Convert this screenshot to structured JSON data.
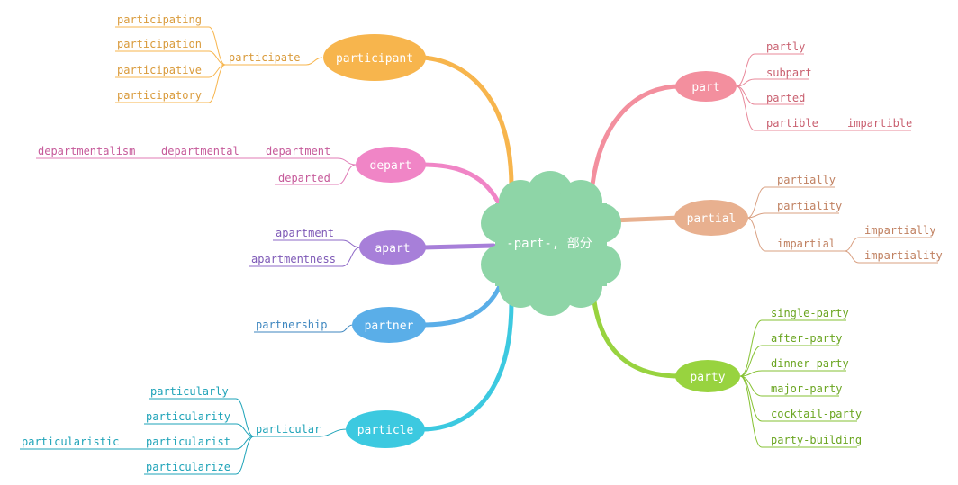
{
  "center": {
    "label": "-part-, 部分",
    "color": "#8ed5a7"
  },
  "branches": {
    "participant": {
      "label": "participant",
      "color": "#f7b54d",
      "sub": "participate",
      "leaves": [
        "participating",
        "participation",
        "participative",
        "participatory"
      ]
    },
    "depart": {
      "label": "depart",
      "color": "#f085c6",
      "leaf_color": "#c65a9a",
      "chain": [
        "department",
        "departmental",
        "departmentalism"
      ],
      "extra": "departed"
    },
    "apart": {
      "label": "apart",
      "color": "#a77fd9",
      "leaf_color": "#7d58b6",
      "leaves": [
        "apartment",
        "apartmentness"
      ]
    },
    "partner": {
      "label": "partner",
      "color": "#5aaee8",
      "leaf_color": "#3d86bf",
      "leaves": [
        "partnership"
      ]
    },
    "particle": {
      "label": "particle",
      "color": "#3cc9e0",
      "leaf_color": "#1ea3b8",
      "sub": "particular",
      "leaves": [
        "particularly",
        "particularity",
        "particularist",
        "particularize"
      ],
      "extra": "particularistic"
    },
    "part": {
      "label": "part",
      "color": "#f38f9e",
      "leaf_color": "#c96070",
      "leaves": [
        "partly",
        "subpart",
        "parted",
        "partible"
      ],
      "extra": "impartible"
    },
    "partial": {
      "label": "partial",
      "color": "#e8b08f",
      "leaf_color": "#c08060",
      "leaves": [
        "partially",
        "partiality",
        "impartial"
      ],
      "sub_leaves": [
        "impartially",
        "impartiality"
      ]
    },
    "party": {
      "label": "party",
      "color": "#98d33f",
      "leaf_color": "#6aa520",
      "leaves": [
        "single-party",
        "after-party",
        "dinner-party",
        "major-party",
        "cocktail-party",
        "party-building"
      ]
    }
  }
}
